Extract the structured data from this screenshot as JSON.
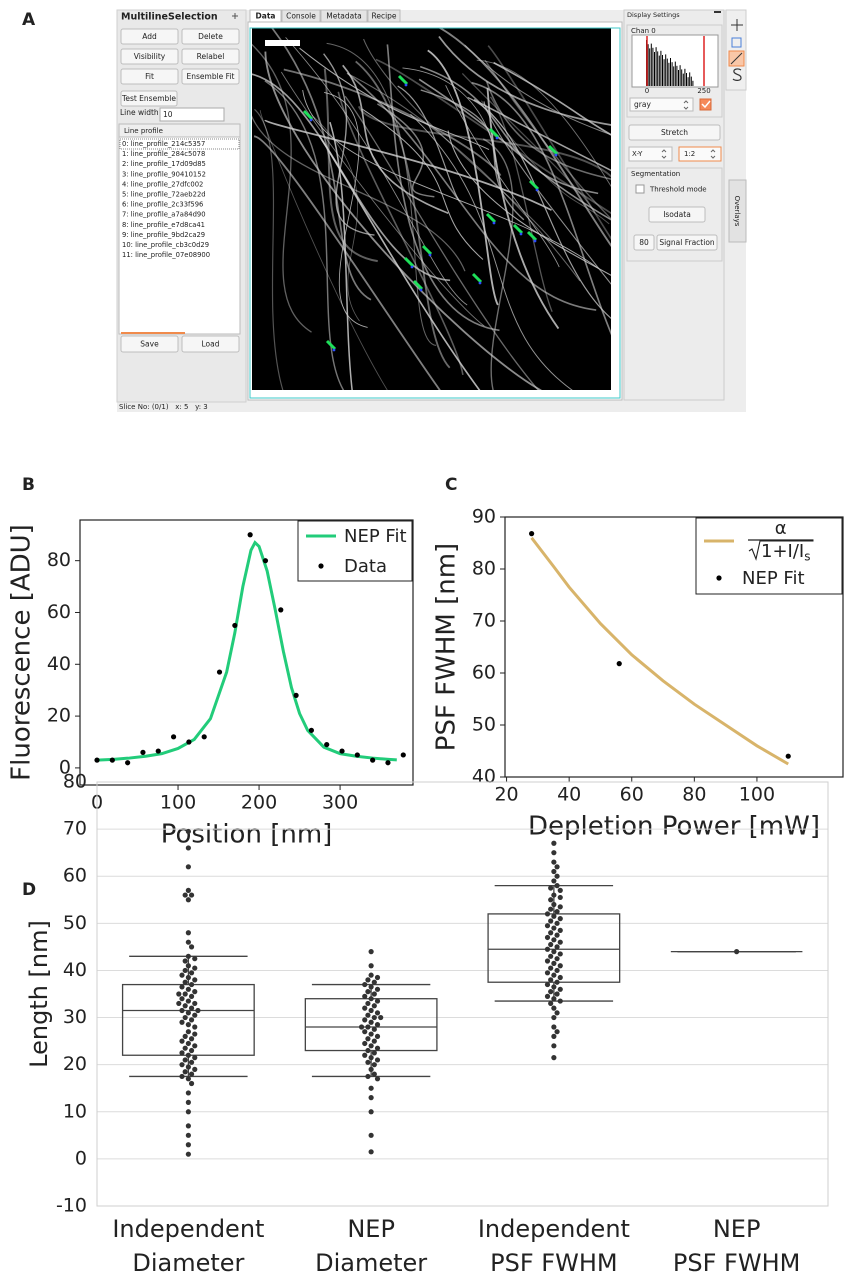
{
  "panel_labels": [
    "A",
    "B",
    "C",
    "D"
  ],
  "screenshot": {
    "left_panel": {
      "title": "MultilineSelection",
      "buttons": [
        "Add",
        "Delete",
        "Visibility",
        "Relabel",
        "Fit",
        "Ensemble Fit",
        "Test Ensemble"
      ],
      "line_width_label": "Line width:",
      "line_width": "10",
      "list_header": "Line profile",
      "items": [
        "0: line_profile_214c5357",
        "1: line_profile_284c5078",
        "2: line_profile_17d09d85",
        "3: line_profile_90410152",
        "4: line_profile_27dfc002",
        "5: line_profile_72aeb22d",
        "6: line_profile_2c33f596",
        "7: line_profile_a7a84d90",
        "8: line_profile_e7d8ca41",
        "9: line_profile_9bd2ca29",
        "10: line_profile_cb3c0d29",
        "11: line_profile_07e08900"
      ],
      "bottom_buttons": [
        "Save",
        "Load"
      ],
      "status": "Slice No: (0/1)   x: 5   y: 3"
    },
    "tabs": [
      "Data",
      "Console",
      "Metadata",
      "Recipe"
    ],
    "display": {
      "title": "Display Settings",
      "channel": "Chan 0",
      "hist_ticks": [
        "0",
        "250"
      ],
      "colormap": "gray",
      "stretch": "Stretch",
      "view": "X-Y",
      "zoom": "1:2",
      "segmentation": "Segmentation",
      "threshold": "Threshold mode",
      "isodata": "Isodata",
      "bits": "80",
      "signal": "Signal Fraction",
      "overlays": "Overlays"
    }
  },
  "chart_data": [
    {
      "type": "line",
      "xlabel": "Position [nm]",
      "ylabel": "Fluorescence [ADU]",
      "xlim": [
        -21,
        390
      ],
      "ylim": [
        -6.6,
        95.7
      ],
      "xticks": [
        0,
        100,
        200,
        300
      ],
      "yticks": [
        0,
        20,
        40,
        60,
        80
      ],
      "legend": "upper right",
      "series": [
        {
          "name": "NEP Fit",
          "kind": "line",
          "color": "#22cc7a",
          "x": [
            0,
            20,
            40,
            60,
            80,
            100,
            120,
            140,
            160,
            170,
            180,
            190,
            195,
            200,
            210,
            220,
            230,
            240,
            250,
            260,
            280,
            300,
            320,
            340,
            360,
            370
          ],
          "values": [
            3,
            3.3,
            3.8,
            4.5,
            5.5,
            7.5,
            11,
            19,
            37,
            52,
            70,
            84,
            87,
            85.5,
            76,
            61,
            45,
            31,
            21,
            14.5,
            8,
            5.5,
            4.5,
            3.8,
            3.3,
            3.1
          ]
        },
        {
          "name": "Data",
          "kind": "scatter",
          "color": "#000000",
          "x": [
            0,
            18.9,
            37.8,
            56.7,
            75.6,
            94.5,
            113.4,
            132.3,
            151.2,
            170.1,
            189,
            207.9,
            226.8,
            245.7,
            264.6,
            283.5,
            302.4,
            321.3,
            340.2,
            359.1,
            378
          ],
          "values": [
            3,
            3,
            2,
            6,
            6.5,
            12,
            10,
            12,
            37,
            55,
            90,
            80,
            61,
            28,
            14.5,
            9,
            6.5,
            5,
            3,
            2,
            5
          ]
        }
      ]
    },
    {
      "type": "line",
      "xlabel": "Depletion Power [mW]",
      "ylabel": "PSF FWHM [nm]",
      "xlim": [
        19.5,
        127.5
      ],
      "ylim": [
        40,
        90
      ],
      "xticks": [
        20,
        40,
        60,
        80,
        100
      ],
      "yticks": [
        40,
        50,
        60,
        70,
        80,
        90
      ],
      "legend": "upper right",
      "series": [
        {
          "name": "α",
          "name_denominator": "1+I/I",
          "name_subscript": "s",
          "kind": "line",
          "color": "#d8b46a",
          "x": [
            28,
            35,
            40,
            50,
            60,
            70,
            80,
            90,
            100,
            110
          ],
          "values": [
            86,
            80.5,
            76.5,
            69.5,
            63.5,
            58.5,
            54,
            50,
            46,
            42.5
          ]
        },
        {
          "name": "NEP Fit",
          "kind": "scatter",
          "color": "#000000",
          "x": [
            28,
            56,
            110
          ],
          "values": [
            86.8,
            61.8,
            44
          ]
        }
      ]
    },
    {
      "type": "box",
      "ylabel": "Length [nm]",
      "ylim": [
        -10,
        80
      ],
      "yticks": [
        -10,
        0,
        10,
        20,
        30,
        40,
        50,
        60,
        70,
        80
      ],
      "grid": true,
      "box_color": "#444444",
      "point_color": "#333333",
      "categories": [
        [
          "Independent",
          "Diameter"
        ],
        [
          "NEP",
          "Diameter"
        ],
        [
          "Independent",
          "PSF FWHM"
        ],
        [
          "NEP",
          "PSF FWHM"
        ]
      ],
      "boxes": [
        {
          "whislo": 17.5,
          "q1": 22,
          "med": 31.5,
          "q3": 37,
          "whishi": 43
        },
        {
          "whislo": 17.5,
          "q1": 23,
          "med": 28,
          "q3": 34,
          "whishi": 37
        },
        {
          "whislo": 33.5,
          "q1": 37.5,
          "med": 44.5,
          "q3": 52,
          "whishi": 58
        },
        {
          "whislo": 44,
          "q1": 44,
          "med": 44,
          "q3": 44,
          "whishi": 44
        }
      ],
      "points": [
        [
          69.5,
          66,
          62,
          57,
          56,
          56,
          55,
          48,
          46,
          45,
          43,
          42.5,
          42,
          41,
          40.5,
          40,
          39.5,
          39,
          38.5,
          38,
          37.5,
          37,
          36.5,
          36,
          35.5,
          35,
          35,
          34.5,
          34,
          33.5,
          33,
          33,
          32.5,
          32,
          31.5,
          31.5,
          31,
          30.5,
          30,
          29.5,
          29,
          28.5,
          28,
          27,
          26.5,
          26,
          25.5,
          25,
          24.5,
          24,
          23.5,
          23,
          22.5,
          22,
          21.5,
          21,
          20.5,
          20,
          19.5,
          19,
          18.5,
          18,
          17.5,
          17,
          16,
          14,
          12,
          10,
          7,
          5,
          3,
          1
        ],
        [
          44,
          41,
          39,
          38.5,
          38,
          37.5,
          37,
          36.5,
          36,
          35.5,
          35,
          34.5,
          34,
          33.5,
          33,
          32.5,
          32,
          31.5,
          31,
          30.5,
          30,
          30,
          29.5,
          29,
          28.5,
          28,
          28,
          27.5,
          27,
          26.5,
          26,
          25.5,
          25,
          24.5,
          24,
          23.5,
          23,
          22.5,
          22,
          21.5,
          21,
          20.5,
          20,
          19,
          18,
          17.5,
          17,
          15,
          13,
          10,
          5,
          1.5
        ],
        [
          67,
          65,
          63,
          62,
          61,
          60,
          59,
          58,
          57.5,
          57,
          56,
          55.5,
          55,
          54,
          53.5,
          53,
          52.5,
          52,
          51.5,
          51,
          50.5,
          50,
          49.5,
          49,
          48.5,
          48,
          47.5,
          47,
          46.5,
          46,
          45.5,
          45,
          44.5,
          44,
          43.5,
          43,
          42.5,
          42,
          41.5,
          41,
          40.5,
          40,
          39.5,
          39,
          38.5,
          38,
          37.5,
          37,
          36.5,
          36,
          35.5,
          35,
          34.5,
          34,
          33.5,
          33,
          32,
          31,
          30,
          28,
          27,
          26,
          24,
          21.5
        ],
        [
          44
        ]
      ]
    }
  ]
}
